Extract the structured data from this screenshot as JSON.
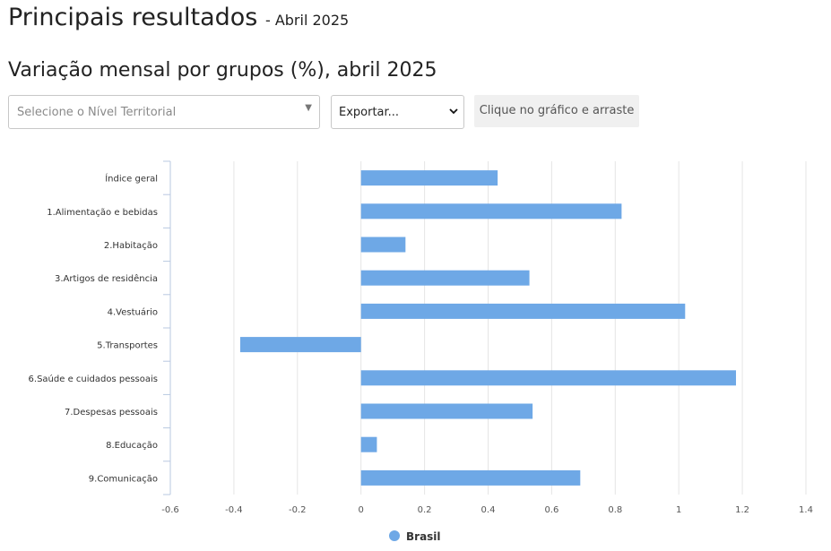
{
  "header": {
    "title": "Principais resultados",
    "subtitle": "- Abril 2025"
  },
  "section": {
    "title": "Variação mensal por grupos (%), abril 2025"
  },
  "controls": {
    "territory_placeholder": "Selecione o Nível Territorial",
    "export_value": "Exportar...",
    "drag_hint": "Clique no gráfico e arraste"
  },
  "colors": {
    "bar": "#6ea8e6",
    "grid": "#e5e5e5",
    "axis": "#b8c8e0"
  },
  "chart_data": {
    "type": "bar",
    "orientation": "horizontal",
    "categories": [
      "Índice geral",
      "1.Alimentação e bebidas",
      "2.Habitação",
      "3.Artigos de residência",
      "4.Vestuário",
      "5.Transportes",
      "6.Saúde e cuidados pessoais",
      "7.Despesas pessoais",
      "8.Educação",
      "9.Comunicação"
    ],
    "series": [
      {
        "name": "Brasil",
        "values": [
          0.43,
          0.82,
          0.14,
          0.53,
          1.02,
          -0.38,
          1.18,
          0.54,
          0.05,
          0.69
        ]
      }
    ],
    "xlim": [
      -0.6,
      1.4
    ],
    "xticks": [
      -0.6,
      -0.4,
      -0.2,
      0,
      0.2,
      0.4,
      0.6,
      0.8,
      1,
      1.2,
      1.4
    ],
    "grid": true,
    "legend": "bottom-center"
  }
}
